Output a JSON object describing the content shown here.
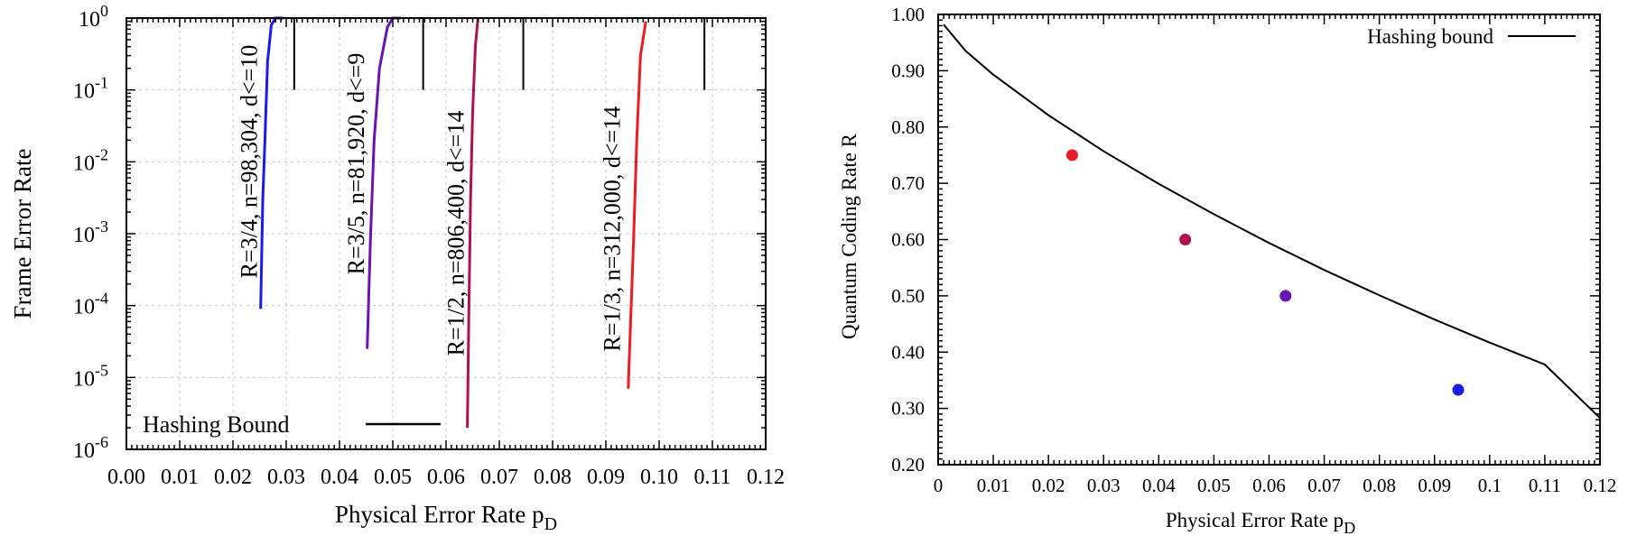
{
  "chart_data": [
    {
      "type": "line",
      "xlabel": "Physical Error Rate p",
      "xlabel_sub": "D",
      "ylabel": "Frame Error Rate",
      "xlim": [
        0.0,
        0.12
      ],
      "ylim": [
        1e-06,
        1
      ],
      "yscale": "log",
      "grid": true,
      "x_ticks": [
        0.0,
        0.01,
        0.02,
        0.03,
        0.04,
        0.05,
        0.06,
        0.07,
        0.08,
        0.09,
        0.1,
        0.11,
        0.12
      ],
      "x_tick_labels": [
        "0.00",
        "0.01",
        "0.02",
        "0.03",
        "0.04",
        "0.05",
        "0.06",
        "0.07",
        "0.08",
        "0.09",
        "0.10",
        "0.11",
        "0.12"
      ],
      "y_tick_exponents": [
        "0",
        "-1",
        "-2",
        "-3",
        "-4",
        "-5",
        "-6"
      ],
      "y_tick_base": "10",
      "series": [
        {
          "name": "R=3/4, n=98,304, d<=10",
          "color": "#1a1aee",
          "points": [
            [
              0.0252,
              9e-05
            ],
            [
              0.0256,
              0.003
            ],
            [
              0.026,
              0.02
            ],
            [
              0.0265,
              0.25
            ],
            [
              0.0272,
              0.8
            ],
            [
              0.028,
              1.0
            ],
            [
              0.0295,
              1.0
            ]
          ]
        },
        {
          "name": "R=3/5, n=81,920, d<=9",
          "color": "#6a14b4",
          "points": [
            [
              0.0452,
              2.5e-05
            ],
            [
              0.0458,
              0.0008
            ],
            [
              0.0465,
              0.02
            ],
            [
              0.0475,
              0.2
            ],
            [
              0.049,
              0.75
            ],
            [
              0.05,
              1.0
            ],
            [
              0.0515,
              1.0
            ]
          ]
        },
        {
          "name": "R=1/2, n=806,400, d<=14",
          "color": "#b01050",
          "points": [
            [
              0.064,
              2e-06
            ],
            [
              0.0643,
              0.0001
            ],
            [
              0.0646,
              0.003
            ],
            [
              0.065,
              0.05
            ],
            [
              0.0655,
              0.4
            ],
            [
              0.066,
              1.0
            ]
          ]
        },
        {
          "name": "R=1/3, n=312,000, d<=14",
          "color": "#ee1a24",
          "points": [
            [
              0.0942,
              7e-06
            ],
            [
              0.0945,
              3e-05
            ],
            [
              0.0952,
              0.0008
            ],
            [
              0.0958,
              0.02
            ],
            [
              0.0965,
              0.3
            ],
            [
              0.0975,
              0.9
            ]
          ]
        }
      ],
      "hashing_bound_x": [
        0.0315,
        0.0557,
        0.0745,
        0.1085
      ],
      "hashing_bound_ymin": 0.1,
      "legend": {
        "label": "Hashing Bound",
        "placement": "bottom-left"
      }
    },
    {
      "type": "scatter",
      "xlabel": "Physical Error Rate p",
      "xlabel_sub": "D",
      "ylabel": "Quantum Coding Rate R",
      "xlim": [
        0,
        0.12
      ],
      "ylim": [
        0.2,
        1.0
      ],
      "grid": false,
      "x_ticks": [
        0,
        0.01,
        0.02,
        0.03,
        0.04,
        0.05,
        0.06,
        0.07,
        0.08,
        0.09,
        0.1,
        0.11,
        0.12
      ],
      "x_tick_labels": [
        "0",
        "0.01",
        "0.02",
        "0.03",
        "0.04",
        "0.05",
        "0.06",
        "0.07",
        "0.08",
        "0.09",
        "0.1",
        "0.11",
        "0.12"
      ],
      "y_ticks": [
        0.2,
        0.3,
        0.4,
        0.5,
        0.6,
        0.7,
        0.8,
        0.9,
        1.0
      ],
      "y_tick_labels": [
        "0.20",
        "0.30",
        "0.40",
        "0.50",
        "0.60",
        "0.70",
        "0.80",
        "0.90",
        "1.00"
      ],
      "points": [
        {
          "x": 0.0243,
          "y": 0.75,
          "color": "#ee1a24"
        },
        {
          "x": 0.0448,
          "y": 0.6,
          "color": "#b01050"
        },
        {
          "x": 0.063,
          "y": 0.5,
          "color": "#6a14b4"
        },
        {
          "x": 0.0943,
          "y": 0.333,
          "color": "#1a1aee"
        }
      ],
      "hashing_curve": [
        [
          0.001,
          0.982
        ],
        [
          0.005,
          0.935
        ],
        [
          0.01,
          0.893
        ],
        [
          0.02,
          0.821
        ],
        [
          0.03,
          0.757
        ],
        [
          0.04,
          0.699
        ],
        [
          0.05,
          0.645
        ],
        [
          0.06,
          0.594
        ],
        [
          0.07,
          0.546
        ],
        [
          0.08,
          0.501
        ],
        [
          0.09,
          0.458
        ],
        [
          0.1,
          0.417
        ],
        [
          0.11,
          0.378
        ],
        [
          0.12,
          0.283
        ]
      ],
      "legend": {
        "label": "Hashing bound",
        "placement": "top-right"
      }
    }
  ]
}
